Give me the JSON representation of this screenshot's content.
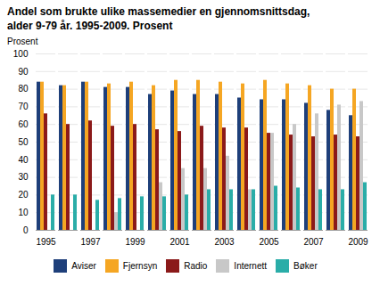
{
  "chart_data": {
    "type": "bar",
    "title": "Andel som brukte ulike massemedier en gjennomsnittsdag,\nalder 9-79 år. 1995-2009. Prosent",
    "ylabel": "Prosent",
    "categories": [
      "1995",
      null,
      "1997",
      null,
      "1999",
      null,
      "2001",
      null,
      "2003",
      null,
      "2005",
      null,
      "2007",
      null,
      "2009"
    ],
    "series": [
      {
        "name": "Aviser",
        "color": "#1e3f7a",
        "values": [
          84,
          82,
          84,
          81,
          81,
          77,
          79,
          77,
          77,
          75,
          74,
          74,
          72,
          68,
          65
        ]
      },
      {
        "name": "Fjernsyn",
        "color": "#f5a623",
        "values": [
          84,
          82,
          84,
          83,
          84,
          82,
          85,
          85,
          84,
          83,
          85,
          83,
          82,
          80,
          80
        ]
      },
      {
        "name": "Radio",
        "color": "#8b1a1a",
        "values": [
          66,
          60,
          62,
          59,
          60,
          57,
          56,
          59,
          58,
          58,
          55,
          54,
          53,
          54,
          53
        ]
      },
      {
        "name": "Internett",
        "color": "#c8c8c8",
        "values": [
          0,
          0,
          0,
          10,
          0,
          27,
          35,
          35,
          42,
          23,
          55,
          60,
          66,
          71,
          73
        ]
      },
      {
        "name": "Bøker",
        "color": "#2aada8",
        "values": [
          20,
          20,
          17,
          18,
          19,
          19,
          20,
          23,
          23,
          23,
          25,
          24,
          23,
          23,
          27
        ]
      }
    ],
    "ylim": [
      0,
      100
    ],
    "yticks": [
      0,
      10,
      20,
      30,
      40,
      50,
      60,
      70,
      80,
      90,
      100
    ],
    "grid": true,
    "legend": "bottom"
  }
}
